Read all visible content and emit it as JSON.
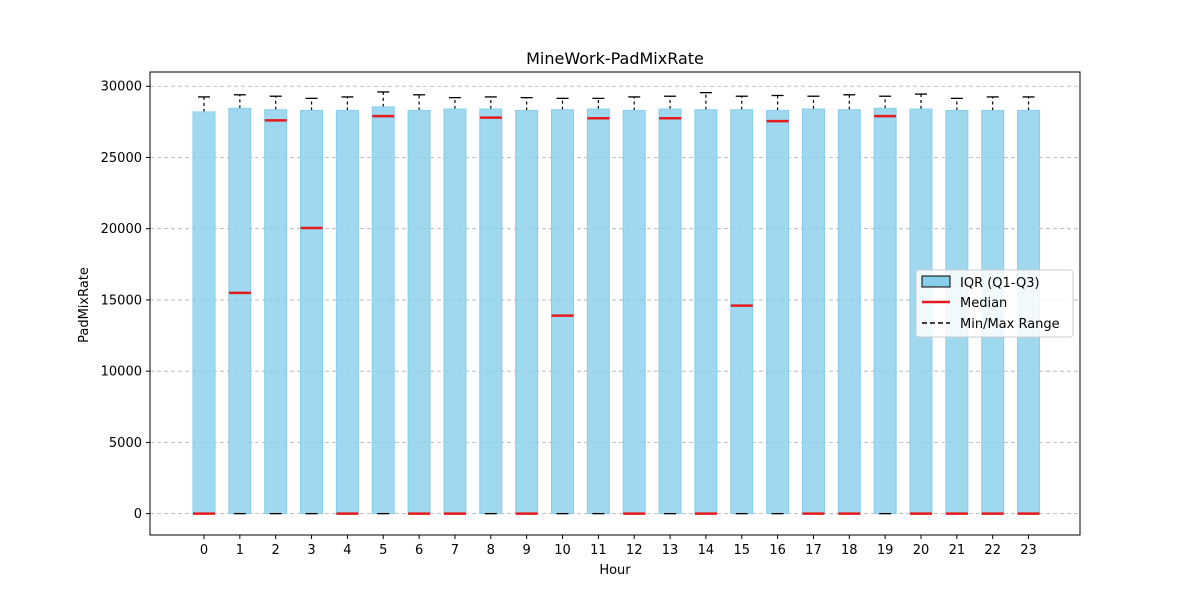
{
  "chart_data": {
    "type": "bar",
    "title": "MineWork-PadMixRate",
    "xlabel": "Hour",
    "ylabel": "PadMixRate",
    "ylim": [
      -1500,
      31000
    ],
    "yticks": [
      0,
      5000,
      10000,
      15000,
      20000,
      25000,
      30000
    ],
    "grid": "y-dashed",
    "legend_position": "center-right",
    "legend": [
      "IQR (Q1-Q3)",
      "Median",
      "Min/Max Range"
    ],
    "categories": [
      "0",
      "1",
      "2",
      "3",
      "4",
      "5",
      "6",
      "7",
      "8",
      "9",
      "10",
      "11",
      "12",
      "13",
      "14",
      "15",
      "16",
      "17",
      "18",
      "19",
      "20",
      "21",
      "22",
      "23"
    ],
    "q1": [
      0,
      0,
      0,
      0,
      0,
      0,
      0,
      0,
      0,
      0,
      0,
      0,
      0,
      0,
      0,
      0,
      0,
      0,
      0,
      0,
      0,
      0,
      0,
      0
    ],
    "q3": [
      28200,
      28450,
      28350,
      28300,
      28300,
      28550,
      28300,
      28400,
      28400,
      28300,
      28350,
      28400,
      28300,
      28400,
      28350,
      28350,
      28300,
      28400,
      28350,
      28450,
      28400,
      28300,
      28300,
      28300
    ],
    "median": [
      0,
      15500,
      27600,
      20050,
      0,
      27900,
      0,
      0,
      27800,
      0,
      13900,
      27750,
      0,
      27750,
      0,
      14600,
      27550,
      0,
      0,
      27900,
      0,
      0,
      0,
      0
    ],
    "min": [
      0,
      0,
      0,
      0,
      0,
      0,
      0,
      0,
      0,
      0,
      0,
      0,
      0,
      0,
      0,
      0,
      0,
      0,
      0,
      0,
      0,
      0,
      0,
      0
    ],
    "max": [
      29250,
      29400,
      29300,
      29150,
      29250,
      29600,
      29400,
      29200,
      29250,
      29200,
      29150,
      29150,
      29250,
      29300,
      29550,
      29300,
      29350,
      29300,
      29400,
      29300,
      29450,
      29150,
      29250,
      29250
    ],
    "colors": {
      "iqr_fill": "#87CEEB",
      "iqr_edge": "#87CEEB",
      "median": "#e41a1c",
      "whisker": "#000000",
      "grid": "#b0b0b0"
    }
  }
}
